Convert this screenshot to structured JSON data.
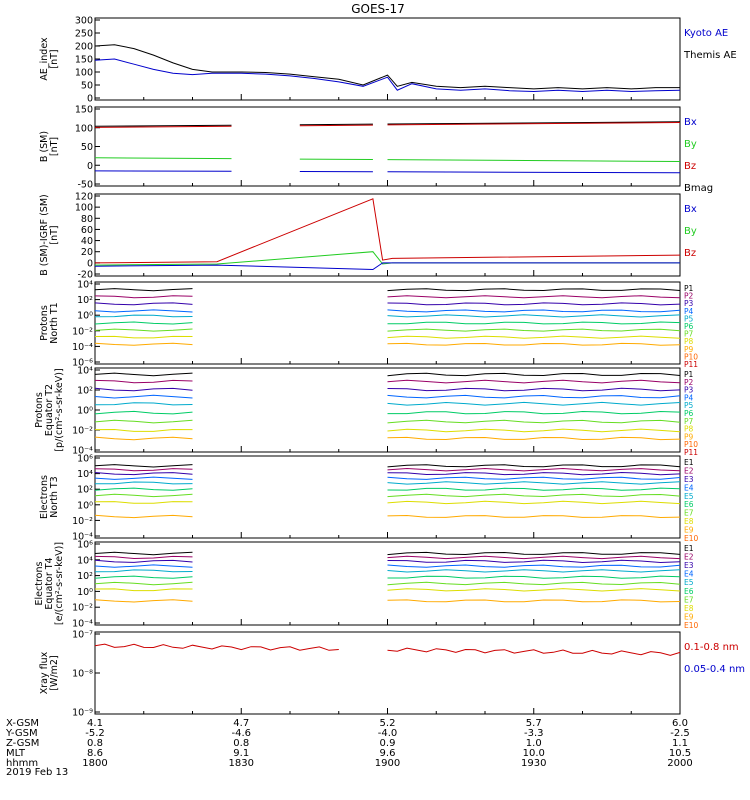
{
  "title": "GOES-17",
  "date_label": "2019 Feb 13",
  "time_axis": {
    "hhmm_ticks": [
      "1800",
      "1830",
      "1900",
      "1930",
      "2000"
    ],
    "rows": [
      {
        "label": "X-GSM",
        "values": [
          "4.1",
          "4.7",
          "5.2",
          "5.7",
          "6.0"
        ]
      },
      {
        "label": "Y-GSM",
        "values": [
          "-5.2",
          "-4.6",
          "-4.0",
          "-3.3",
          "-2.5"
        ]
      },
      {
        "label": "Z-GSM",
        "values": [
          "0.8",
          "0.8",
          "0.9",
          "1.0",
          "1.1"
        ]
      },
      {
        "label": "MLT",
        "values": [
          "8.6",
          "9.1",
          "9.6",
          "10.0",
          "10.5"
        ]
      },
      {
        "label": "hhmm",
        "values": [
          "1800",
          "1830",
          "1900",
          "1930",
          "2000"
        ]
      }
    ]
  },
  "colors": {
    "black": "#000000",
    "blue": "#0000cc",
    "green": "#22cc22",
    "red": "#cc0000"
  },
  "panels": [
    {
      "id": "ae",
      "ylabel": [
        "AE_index",
        "[nT]"
      ],
      "ticks": [
        "300",
        "250",
        "200",
        "150",
        "100",
        "50",
        "0"
      ],
      "legend": [
        {
          "text": "Kyoto AE",
          "color": "#0000cc"
        },
        {
          "text": "Themis AE",
          "color": "#000000"
        }
      ]
    },
    {
      "id": "bsm",
      "ylabel": [
        "B (SM)",
        "[nT]"
      ],
      "ticks": [
        "150",
        "100",
        "50",
        "0",
        "-50"
      ],
      "legend": [
        {
          "text": "Bx",
          "color": "#0000cc"
        },
        {
          "text": "By",
          "color": "#22cc22"
        },
        {
          "text": "Bz",
          "color": "#cc0000"
        },
        {
          "text": "Bmag",
          "color": "#000000"
        }
      ]
    },
    {
      "id": "bigrf",
      "ylabel": [
        "B (SM)-IGRF (SM)",
        "[nT]"
      ],
      "ticks": [
        "120",
        "100",
        "80",
        "60",
        "40",
        "20",
        "0",
        "-20"
      ],
      "legend": [
        {
          "text": "Bx",
          "color": "#0000cc"
        },
        {
          "text": "By",
          "color": "#22cc22"
        },
        {
          "text": "Bz",
          "color": "#cc0000"
        }
      ]
    },
    {
      "id": "pn",
      "ylabel": [
        "Protons",
        "North T1"
      ],
      "ticks": [
        "10⁴",
        "10²",
        "10⁰",
        "10⁻²",
        "10⁻⁴",
        "10⁻⁶"
      ],
      "legend": [
        {
          "text": "P1"
        },
        {
          "text": "P2"
        },
        {
          "text": "P3"
        },
        {
          "text": "P4"
        },
        {
          "text": "P5"
        },
        {
          "text": "P6"
        },
        {
          "text": "P7"
        },
        {
          "text": "P8"
        },
        {
          "text": "P9"
        },
        {
          "text": "P10"
        },
        {
          "text": "P11"
        }
      ]
    },
    {
      "id": "pe",
      "ylabel": [
        "Protons",
        "Equator T2",
        "[p/(cm²-s-sr-keV)]"
      ],
      "ticks": [
        "10⁴",
        "10²",
        "10⁰",
        "10⁻²",
        "10⁻⁴"
      ],
      "legend": [
        {
          "text": "P1"
        },
        {
          "text": "P2"
        },
        {
          "text": "P3"
        },
        {
          "text": "P4"
        },
        {
          "text": "P5"
        },
        {
          "text": "P6"
        },
        {
          "text": "P7"
        },
        {
          "text": "P8"
        },
        {
          "text": "P9"
        },
        {
          "text": "P10"
        },
        {
          "text": "P11"
        }
      ]
    },
    {
      "id": "en",
      "ylabel": [
        "Electrons",
        "North T3"
      ],
      "ticks": [
        "10⁶",
        "10⁴",
        "10²",
        "10⁰",
        "10⁻²",
        "10⁻⁴"
      ],
      "legend": [
        {
          "text": "E1"
        },
        {
          "text": "E2"
        },
        {
          "text": "E3"
        },
        {
          "text": "E4"
        },
        {
          "text": "E5"
        },
        {
          "text": "E6"
        },
        {
          "text": "E7"
        },
        {
          "text": "E8"
        },
        {
          "text": "E9"
        },
        {
          "text": "E10"
        }
      ]
    },
    {
      "id": "ee",
      "ylabel": [
        "Electrons",
        "Equator T4",
        "[e/(cm²-s-sr-keV)]"
      ],
      "ticks": [
        "10⁶",
        "10⁴",
        "10²",
        "10⁰",
        "10⁻²",
        "10⁻⁴"
      ],
      "legend": [
        {
          "text": "E1"
        },
        {
          "text": "E2"
        },
        {
          "text": "E3"
        },
        {
          "text": "E4"
        },
        {
          "text": "E5"
        },
        {
          "text": "E6"
        },
        {
          "text": "E7"
        },
        {
          "text": "E8"
        },
        {
          "text": "E9"
        },
        {
          "text": "E10"
        }
      ]
    },
    {
      "id": "xray",
      "ylabel": [
        "Xray flux",
        "[W/m2]"
      ],
      "ticks": [
        "10⁻⁷",
        "10⁻⁸",
        "10⁻⁹"
      ],
      "legend": [
        {
          "text": "0.1-0.8 nm",
          "color": "#cc0000"
        },
        {
          "text": "0.05-0.4 nm",
          "color": "#0000cc"
        }
      ]
    }
  ],
  "chart_data": {
    "type": "line",
    "title": "GOES-17",
    "x_unit": "minutes after 18:00 UT",
    "xlim": [
      0,
      120
    ],
    "panels": [
      {
        "id": "ae",
        "ylim": [
          0,
          300
        ],
        "series": [
          {
            "name": "Themis AE",
            "color": "#000000",
            "x": [
              0,
              4,
              8,
              12,
              16,
              20,
              24,
              30,
              35,
              40,
              45,
              50,
              55,
              60,
              62,
              65,
              70,
              75,
              80,
              85,
              90,
              95,
              100,
              105,
              110,
              115,
              120
            ],
            "y": [
              200,
              205,
              190,
              165,
              135,
              110,
              100,
              100,
              98,
              92,
              82,
              72,
              50,
              88,
              45,
              60,
              45,
              40,
              45,
              40,
              35,
              40,
              35,
              40,
              35,
              40,
              40
            ]
          },
          {
            "name": "Kyoto AE",
            "color": "#0000cc",
            "x": [
              0,
              4,
              8,
              12,
              16,
              20,
              24,
              30,
              35,
              40,
              45,
              50,
              55,
              60,
              62,
              65,
              70,
              75,
              80,
              85,
              90,
              95,
              100,
              105,
              110,
              115,
              120
            ],
            "y": [
              145,
              150,
              130,
              110,
              95,
              90,
              95,
              95,
              92,
              85,
              75,
              62,
              45,
              80,
              30,
              55,
              35,
              30,
              35,
              28,
              25,
              30,
              25,
              30,
              25,
              28,
              30
            ]
          }
        ]
      },
      {
        "id": "bsm",
        "ylim": [
          -50,
          150
        ],
        "gaps": [
          [
            28,
            42
          ],
          [
            57,
            60
          ]
        ],
        "series": [
          {
            "name": "Bmag",
            "color": "#000000",
            "x": [
              0,
              120
            ],
            "y": [
              104,
              116
            ]
          },
          {
            "name": "Bz",
            "color": "#cc0000",
            "x": [
              0,
              120
            ],
            "y": [
              101,
              114
            ]
          },
          {
            "name": "By",
            "color": "#22cc22",
            "x": [
              0,
              120
            ],
            "y": [
              20,
              10
            ]
          },
          {
            "name": "Bx",
            "color": "#0000cc",
            "x": [
              0,
              120
            ],
            "y": [
              -15,
              -20
            ]
          }
        ]
      },
      {
        "id": "bigrf",
        "ylim": [
          -20,
          120
        ],
        "series": [
          {
            "name": "Bz",
            "color": "#cc0000",
            "x": [
              0,
              25,
              57,
              59,
              61,
              120
            ],
            "y": [
              0,
              2,
              115,
              5,
              8,
              14
            ]
          },
          {
            "name": "By",
            "color": "#22cc22",
            "x": [
              0,
              25,
              57,
              59,
              61,
              120
            ],
            "y": [
              -4,
              -2,
              20,
              -2,
              0,
              0
            ]
          },
          {
            "name": "Bx",
            "color": "#0000cc",
            "x": [
              0,
              25,
              57,
              59,
              61,
              120
            ],
            "y": [
              -6,
              -4,
              -12,
              0,
              0,
              0
            ]
          }
        ]
      },
      {
        "id": "pn",
        "ylim": [
          "1e-6",
          "1e5"
        ],
        "gap": [
          22,
          60
        ],
        "channels": [
          "P1",
          "P2",
          "P3",
          "P4",
          "P5",
          "P6",
          "P7",
          "P8",
          "P9",
          "P10",
          "P11"
        ],
        "log_levels": [
          4.2,
          3.2,
          2.2,
          1.2,
          0.5,
          -0.5,
          -1.5,
          -2.5,
          -3.5
        ]
      },
      {
        "id": "pe",
        "ylim": [
          "1e-5",
          "1e4"
        ],
        "gap": [
          22,
          60
        ],
        "channels": [
          "P1",
          "P2",
          "P3",
          "P4",
          "P5",
          "P6",
          "P7",
          "P8",
          "P9",
          "P10",
          "P11"
        ],
        "log_levels": [
          3.5,
          2.7,
          1.8,
          1.0,
          0.2,
          -0.8,
          -1.8,
          -2.8,
          -3.7
        ]
      },
      {
        "id": "en",
        "ylim": [
          "1e-4",
          "1e6"
        ],
        "gap": [
          22,
          60
        ],
        "channels": [
          "E1",
          "E2",
          "E3",
          "E4",
          "E5",
          "E6",
          "E7",
          "E8",
          "E9",
          "E10"
        ],
        "log_levels": [
          5.0,
          4.5,
          4.0,
          3.4,
          2.8,
          2.0,
          1.2,
          0.3,
          -1.5
        ]
      },
      {
        "id": "ee",
        "ylim": [
          "1e-4",
          "1e6"
        ],
        "gap": [
          22,
          60
        ],
        "channels": [
          "E1",
          "E2",
          "E3",
          "E4",
          "E5",
          "E6",
          "E7",
          "E8",
          "E9",
          "E10"
        ],
        "log_levels": [
          4.8,
          4.3,
          3.8,
          3.2,
          2.6,
          1.8,
          1.0,
          0.2,
          -1.2
        ]
      },
      {
        "id": "xray",
        "ylim": [
          "1e-9",
          "1e-7"
        ],
        "series": [
          {
            "name": "0.1-0.8 nm",
            "color": "#cc0000",
            "log_y": [
              -7.3,
              -7.5
            ]
          }
        ]
      }
    ]
  }
}
